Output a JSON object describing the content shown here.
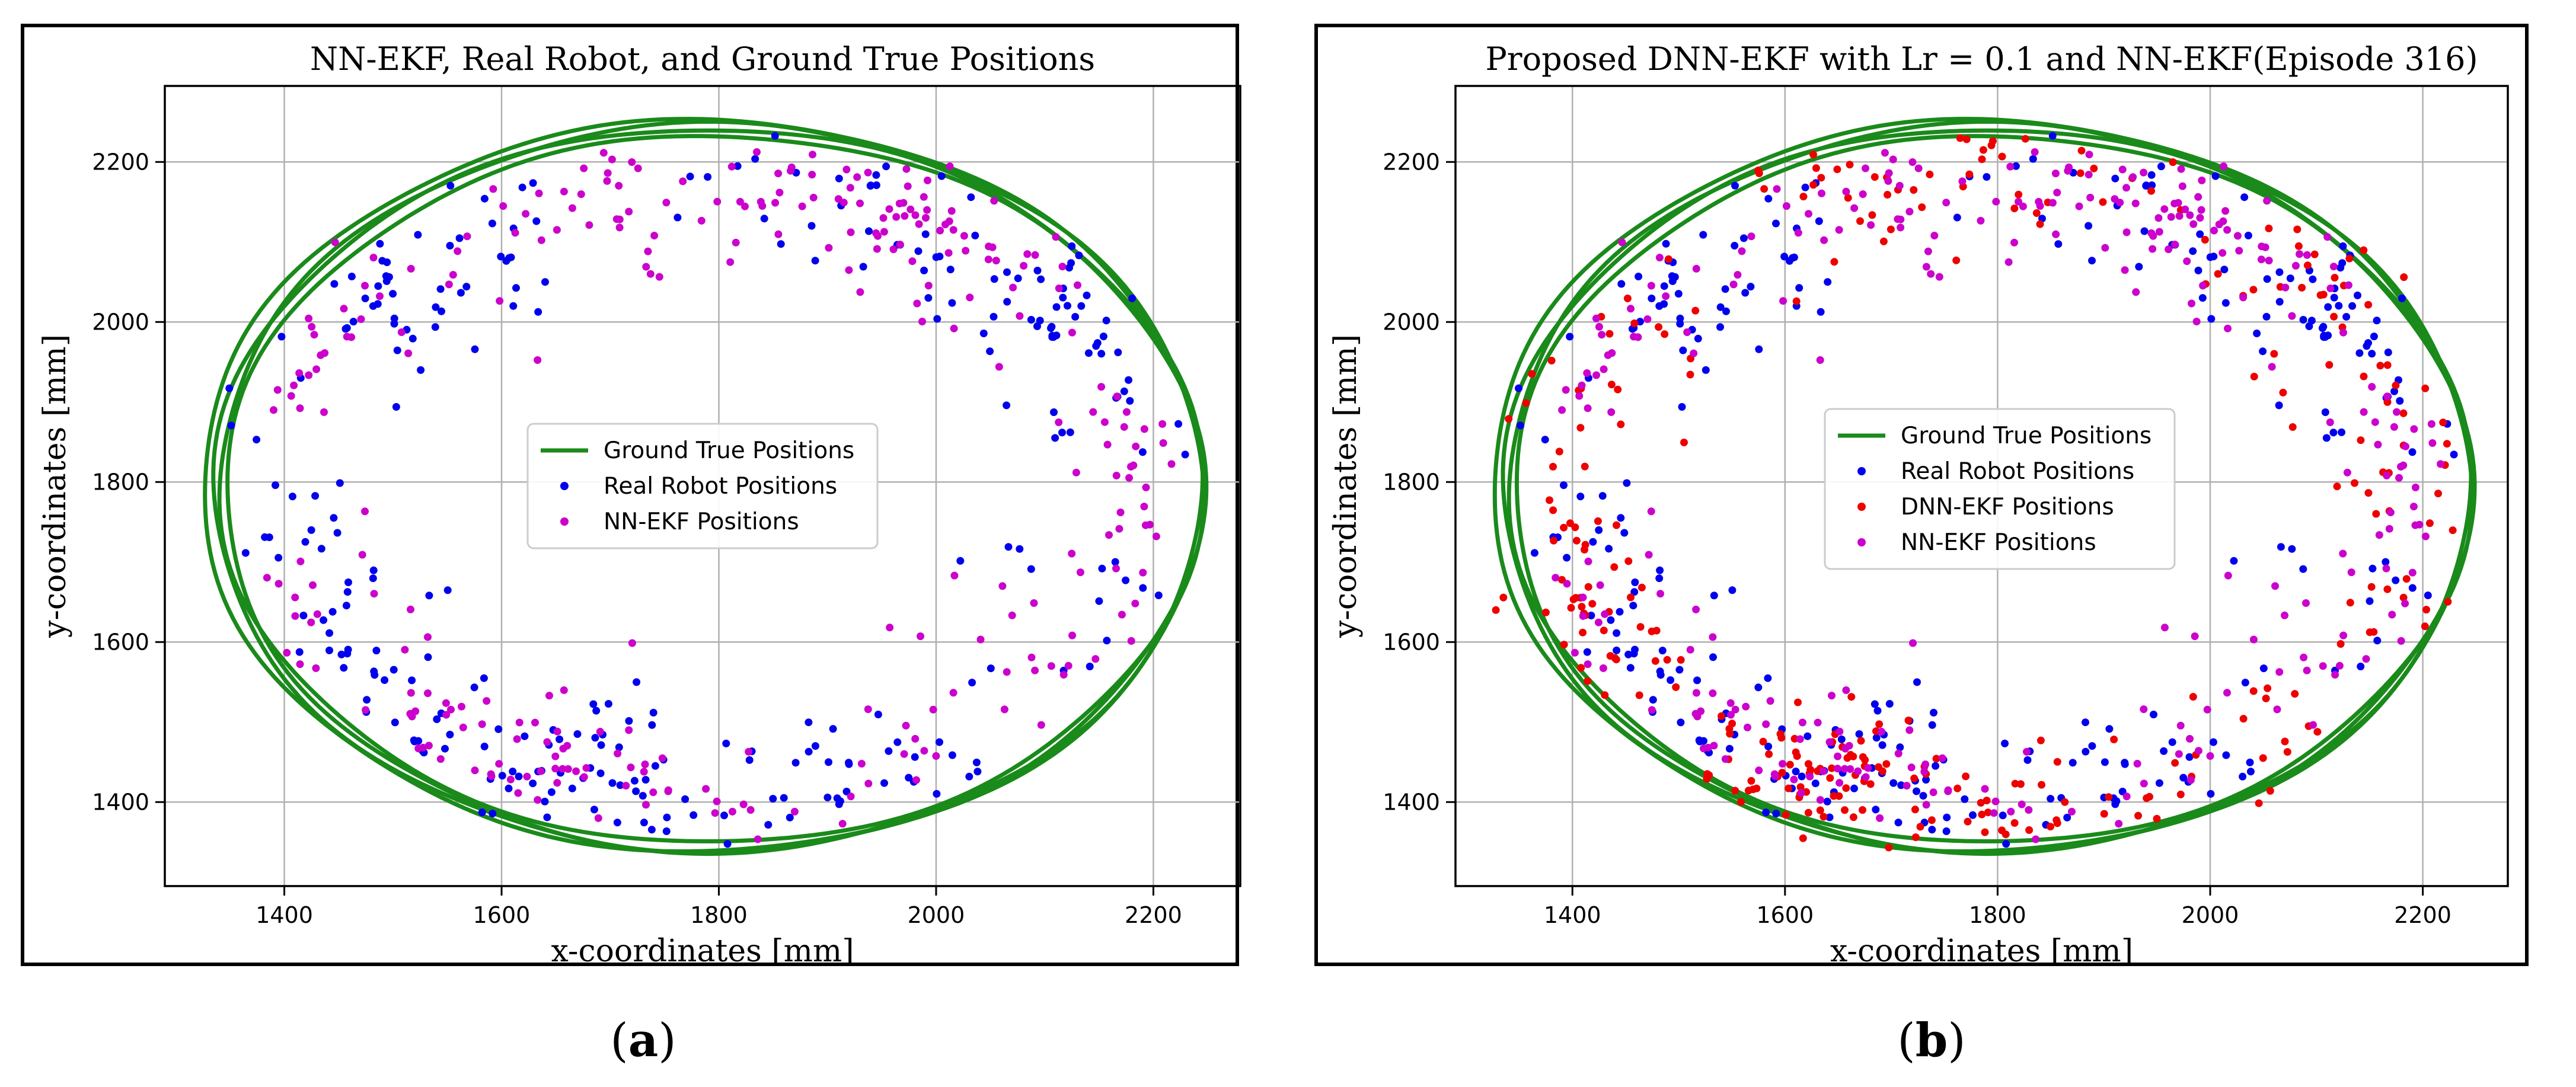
{
  "figure_labels": {
    "a": "(a)",
    "b": "(b)"
  },
  "colors": {
    "ground_true": "#1a8a1a",
    "real_robot": "#0000ee",
    "nn_ekf": "#cc00cc",
    "dnn_ekf": "#ee0000"
  },
  "chart_data": [
    {
      "type": "scatter",
      "title": "NN-EKF, Real Robot, and Ground True Positions",
      "xlabel": "x-coordinates [mm]",
      "ylabel": "y-coordinates [mm]",
      "xlim": [
        1290,
        2280
      ],
      "ylim": [
        1295,
        2295
      ],
      "xticks": [
        "1400",
        "1600",
        "1800",
        "2000",
        "2200"
      ],
      "xtick_values": [
        1400,
        1600,
        1800,
        2000,
        2200
      ],
      "yticks": [
        "1400",
        "1600",
        "1800",
        "2000",
        "2200"
      ],
      "ytick_values": [
        1400,
        1600,
        1800,
        2000,
        2200
      ],
      "grid": true,
      "legend": [
        {
          "label": "Ground True Positions",
          "kind": "line",
          "series": "ground_true"
        },
        {
          "label": "Real Robot Positions",
          "kind": "dot",
          "series": "real_robot"
        },
        {
          "label": "NN-EKF Positions",
          "kind": "dot",
          "series": "nn_ekf"
        }
      ],
      "series": [
        {
          "name": "ground_true",
          "kind": "line",
          "center": [
            1790,
            1790
          ],
          "radius": [
            455,
            452
          ]
        },
        {
          "name": "real_robot",
          "kind": "scatter",
          "seed": 11,
          "count": 290,
          "center": [
            1790,
            1790
          ],
          "radius": [
            440,
            425
          ],
          "spread": 60,
          "drift": 45
        },
        {
          "name": "nn_ekf",
          "kind": "scatter",
          "seed": 23,
          "count": 290,
          "center": [
            1790,
            1790
          ],
          "radius": [
            438,
            425
          ],
          "spread": 60,
          "drift": 45
        }
      ]
    },
    {
      "type": "scatter",
      "title": "Proposed DNN-EKF with Lr = 0.1 and NN-EKF(Episode 316)",
      "xlabel": "x-coordinates [mm]",
      "ylabel": "y-coordinates [mm]",
      "xlim": [
        1290,
        2280
      ],
      "ylim": [
        1295,
        2295
      ],
      "xticks": [
        "1400",
        "1600",
        "1800",
        "2000",
        "2200"
      ],
      "xtick_values": [
        1400,
        1600,
        1800,
        2000,
        2200
      ],
      "yticks": [
        "1400",
        "1600",
        "1800",
        "2000",
        "2200"
      ],
      "ytick_values": [
        1400,
        1600,
        1800,
        2000,
        2200
      ],
      "grid": true,
      "legend": [
        {
          "label": "Ground True Positions",
          "kind": "line",
          "series": "ground_true"
        },
        {
          "label": "Real Robot Positions",
          "kind": "dot",
          "series": "real_robot"
        },
        {
          "label": "DNN-EKF Positions",
          "kind": "dot",
          "series": "dnn_ekf"
        },
        {
          "label": "NN-EKF Positions",
          "kind": "dot",
          "series": "nn_ekf"
        }
      ],
      "series": [
        {
          "name": "ground_true",
          "kind": "line",
          "center": [
            1790,
            1790
          ],
          "radius": [
            455,
            452
          ]
        },
        {
          "name": "real_robot",
          "kind": "scatter",
          "seed": 11,
          "count": 290,
          "center": [
            1790,
            1790
          ],
          "radius": [
            440,
            425
          ],
          "spread": 60,
          "drift": 45
        },
        {
          "name": "dnn_ekf",
          "kind": "scatter",
          "seed": 37,
          "count": 300,
          "center": [
            1790,
            1790
          ],
          "radius": [
            450,
            440
          ],
          "spread": 55,
          "drift": 40
        },
        {
          "name": "nn_ekf",
          "kind": "scatter",
          "seed": 23,
          "count": 290,
          "center": [
            1790,
            1790
          ],
          "radius": [
            438,
            425
          ],
          "spread": 60,
          "drift": 45
        }
      ]
    }
  ]
}
